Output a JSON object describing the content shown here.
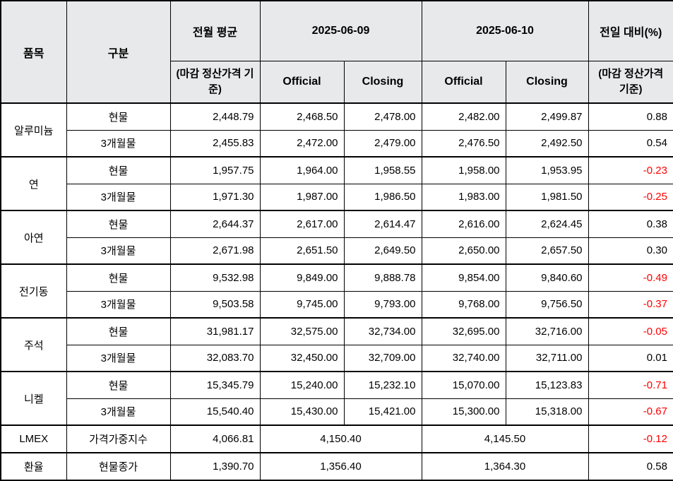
{
  "table": {
    "colors": {
      "header_bg": "#e8e9ea",
      "negative": "#ff0000",
      "border": "#000000",
      "positive_text": "#000000"
    },
    "header": {
      "item": "품목",
      "category": "구분",
      "prev_avg": "전월 평균",
      "prev_avg_sub": "(마감 정산가격 기준)",
      "date1": "2025-06-09",
      "date2": "2025-06-10",
      "official": "Official",
      "closing": "Closing",
      "change": "전일 대비(%)",
      "change_sub": "(마감 정산가격 기준)"
    },
    "groups": [
      {
        "item": "알루미늄",
        "rows": [
          {
            "category": "현물",
            "values": [
              "2,448.79",
              "2,468.50",
              "2,478.00",
              "2,482.00",
              "2,499.87",
              "0.88"
            ]
          },
          {
            "category": "3개월물",
            "values": [
              "2,455.83",
              "2,472.00",
              "2,479.00",
              "2,476.50",
              "2,492.50",
              "0.54"
            ]
          }
        ]
      },
      {
        "item": "연",
        "rows": [
          {
            "category": "현물",
            "values": [
              "1,957.75",
              "1,964.00",
              "1,958.55",
              "1,958.00",
              "1,953.95",
              "-0.23"
            ]
          },
          {
            "category": "3개월물",
            "values": [
              "1,971.30",
              "1,987.00",
              "1,986.50",
              "1,983.00",
              "1,981.50",
              "-0.25"
            ]
          }
        ]
      },
      {
        "item": "아연",
        "rows": [
          {
            "category": "현물",
            "values": [
              "2,644.37",
              "2,617.00",
              "2,614.47",
              "2,616.00",
              "2,624.45",
              "0.38"
            ]
          },
          {
            "category": "3개월물",
            "values": [
              "2,671.98",
              "2,651.50",
              "2,649.50",
              "2,650.00",
              "2,657.50",
              "0.30"
            ]
          }
        ]
      },
      {
        "item": "전기동",
        "rows": [
          {
            "category": "현물",
            "values": [
              "9,532.98",
              "9,849.00",
              "9,888.78",
              "9,854.00",
              "9,840.60",
              "-0.49"
            ]
          },
          {
            "category": "3개월물",
            "values": [
              "9,503.58",
              "9,745.00",
              "9,793.00",
              "9,768.00",
              "9,756.50",
              "-0.37"
            ]
          }
        ]
      },
      {
        "item": "주석",
        "rows": [
          {
            "category": "현물",
            "values": [
              "31,981.17",
              "32,575.00",
              "32,734.00",
              "32,695.00",
              "32,716.00",
              "-0.05"
            ]
          },
          {
            "category": "3개월물",
            "values": [
              "32,083.70",
              "32,450.00",
              "32,709.00",
              "32,740.00",
              "32,711.00",
              "0.01"
            ]
          }
        ]
      },
      {
        "item": "니켈",
        "rows": [
          {
            "category": "현물",
            "values": [
              "15,345.79",
              "15,240.00",
              "15,232.10",
              "15,070.00",
              "15,123.83",
              "-0.71"
            ]
          },
          {
            "category": "3개월물",
            "values": [
              "15,540.40",
              "15,430.00",
              "15,421.00",
              "15,300.00",
              "15,318.00",
              "-0.67"
            ]
          }
        ]
      }
    ],
    "summary": [
      {
        "item": "LMEX",
        "category": "가격가중지수",
        "prev_avg": "4,066.81",
        "date1_value": "4,150.40",
        "date2_value": "4,145.50",
        "change": "-0.12"
      },
      {
        "item": "환율",
        "category": "현물종가",
        "prev_avg": "1,390.70",
        "date1_value": "1,356.40",
        "date2_value": "1,364.30",
        "change": "0.58"
      }
    ]
  }
}
